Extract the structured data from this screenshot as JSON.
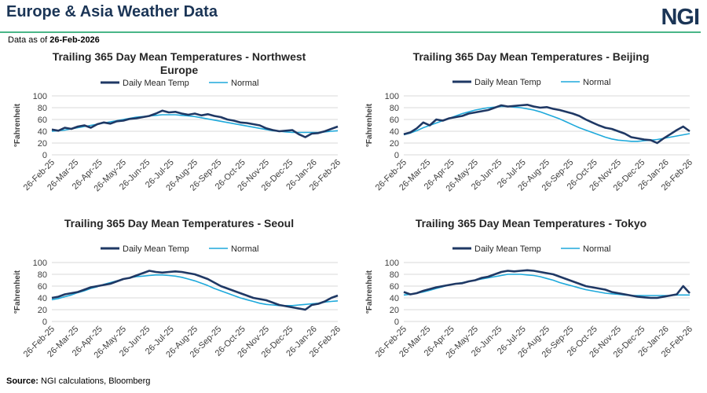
{
  "header": {
    "title": "Europe & Asia Weather Data",
    "logo_text": "NGI",
    "data_as_of_label": "Data as of",
    "data_as_of_date": "26-Feb-2026"
  },
  "footer": {
    "source_label": "Source:",
    "source_text": "NGI calculations, Bloomberg"
  },
  "colors": {
    "title": "#1b3556",
    "accent_rule": "#49b687",
    "daily_series": "#1f3864",
    "normal_series": "#1ea9db",
    "gridline": "#d9d9d9"
  },
  "chart_data": [
    {
      "type": "line",
      "title": "Trailing 365 Day Mean Temperatures - Northwest Europe",
      "ylabel": "°Fahrenheit",
      "ylim": [
        0,
        100
      ],
      "yticks": [
        0,
        20,
        40,
        60,
        80,
        100
      ],
      "xticks": [
        "26-Feb-25",
        "26-Mar-25",
        "26-Apr-25",
        "26-May-25",
        "26-Jun-25",
        "26-Jul-25",
        "26-Aug-25",
        "26-Sep-25",
        "26-Oct-25",
        "26-Nov-25",
        "26-Dec-25",
        "26-Jan-26",
        "26-Feb-26"
      ],
      "grid": "horizontal",
      "legend": "top",
      "series": [
        {
          "name": "Daily Mean Temp",
          "color": "#1f3864",
          "values": [
            43,
            41,
            46,
            44,
            48,
            50,
            46,
            52,
            55,
            53,
            57,
            58,
            61,
            62,
            64,
            66,
            70,
            75,
            72,
            73,
            70,
            68,
            70,
            67,
            69,
            66,
            64,
            60,
            58,
            55,
            54,
            52,
            50,
            45,
            42,
            40,
            41,
            42,
            35,
            30,
            36,
            37,
            40,
            44,
            48
          ]
        },
        {
          "name": "Normal",
          "color": "#1ea9db",
          "values": [
            40,
            41,
            42,
            44,
            46,
            48,
            50,
            52,
            54,
            56,
            58,
            60,
            62,
            64,
            65,
            66,
            67,
            68,
            68,
            68,
            67,
            66,
            65,
            63,
            61,
            59,
            57,
            55,
            53,
            51,
            49,
            47,
            45,
            43,
            41,
            40,
            39,
            38,
            38,
            38,
            38,
            38,
            39,
            40,
            41
          ]
        }
      ]
    },
    {
      "type": "line",
      "title": "Trailing 365 Day Mean Temperatures - Beijing",
      "ylabel": "°Fahrenheit",
      "ylim": [
        0,
        100
      ],
      "yticks": [
        0,
        20,
        40,
        60,
        80,
        100
      ],
      "xticks": [
        "26-Feb-25",
        "26-Mar-25",
        "26-Apr-25",
        "26-May-25",
        "26-Jun-25",
        "26-Jul-25",
        "26-Aug-25",
        "26-Sep-25",
        "26-Oct-25",
        "26-Nov-25",
        "26-Dec-25",
        "26-Jan-26",
        "26-Feb-26"
      ],
      "grid": "horizontal",
      "legend": "top",
      "series": [
        {
          "name": "Daily Mean Temp",
          "color": "#1f3864",
          "values": [
            35,
            38,
            45,
            55,
            50,
            60,
            58,
            62,
            64,
            66,
            70,
            72,
            74,
            76,
            80,
            84,
            82,
            83,
            84,
            85,
            82,
            80,
            81,
            78,
            76,
            73,
            70,
            66,
            60,
            55,
            50,
            46,
            44,
            40,
            36,
            30,
            28,
            26,
            25,
            20,
            28,
            35,
            42,
            48,
            40
          ]
        },
        {
          "name": "Normal",
          "color": "#1ea9db",
          "values": [
            34,
            37,
            41,
            46,
            50,
            54,
            58,
            62,
            66,
            70,
            73,
            76,
            78,
            80,
            81,
            82,
            82,
            81,
            80,
            78,
            76,
            73,
            69,
            65,
            61,
            56,
            51,
            46,
            42,
            38,
            34,
            30,
            27,
            25,
            24,
            23,
            23,
            24,
            25,
            26,
            28,
            30,
            32,
            34,
            36
          ]
        }
      ]
    },
    {
      "type": "line",
      "title": "Trailing 365 Day Mean Temperatures - Seoul",
      "ylabel": "°Fahrenheit",
      "ylim": [
        0,
        100
      ],
      "yticks": [
        0,
        20,
        40,
        60,
        80,
        100
      ],
      "xticks": [
        "26-Feb-25",
        "26-Mar-25",
        "26-Apr-25",
        "26-May-25",
        "26-Jun-25",
        "26-Jul-25",
        "26-Aug-25",
        "26-Sep-25",
        "26-Oct-25",
        "26-Nov-25",
        "26-Dec-25",
        "26-Jan-26",
        "26-Feb-26"
      ],
      "grid": "horizontal",
      "legend": "top",
      "series": [
        {
          "name": "Daily Mean Temp",
          "color": "#1f3864",
          "values": [
            40,
            42,
            46,
            48,
            50,
            54,
            58,
            60,
            62,
            64,
            68,
            72,
            74,
            78,
            82,
            86,
            84,
            83,
            84,
            85,
            84,
            82,
            80,
            76,
            72,
            66,
            60,
            56,
            52,
            48,
            44,
            40,
            38,
            36,
            32,
            28,
            26,
            24,
            22,
            20,
            28,
            30,
            34,
            40,
            44
          ]
        },
        {
          "name": "Normal",
          "color": "#1ea9db",
          "values": [
            37,
            39,
            42,
            45,
            49,
            52,
            56,
            59,
            63,
            66,
            69,
            72,
            74,
            76,
            77,
            78,
            79,
            79,
            78,
            77,
            75,
            72,
            69,
            65,
            61,
            56,
            52,
            48,
            44,
            40,
            37,
            34,
            31,
            29,
            28,
            27,
            27,
            27,
            28,
            29,
            30,
            31,
            33,
            34,
            35
          ]
        }
      ]
    },
    {
      "type": "line",
      "title": "Trailing 365 Day Mean Temperatures - Tokyo",
      "ylabel": "°Fahrenheit",
      "ylim": [
        0,
        100
      ],
      "yticks": [
        0,
        20,
        40,
        60,
        80,
        100
      ],
      "xticks": [
        "26-Feb-25",
        "26-Mar-25",
        "26-Apr-25",
        "26-May-25",
        "26-Jun-25",
        "26-Jul-25",
        "26-Aug-25",
        "26-Sep-25",
        "26-Oct-25",
        "26-Nov-25",
        "26-Dec-25",
        "26-Jan-26",
        "26-Feb-26"
      ],
      "grid": "horizontal",
      "legend": "top",
      "series": [
        {
          "name": "Daily Mean Temp",
          "color": "#1f3864",
          "values": [
            50,
            46,
            48,
            52,
            55,
            58,
            60,
            62,
            64,
            65,
            68,
            70,
            74,
            76,
            80,
            84,
            86,
            85,
            86,
            87,
            86,
            84,
            82,
            80,
            76,
            72,
            68,
            64,
            60,
            58,
            56,
            54,
            50,
            48,
            46,
            44,
            42,
            41,
            40,
            40,
            42,
            44,
            46,
            60,
            48
          ]
        },
        {
          "name": "Normal",
          "color": "#1ea9db",
          "values": [
            45,
            46,
            48,
            50,
            53,
            56,
            59,
            62,
            64,
            66,
            68,
            70,
            72,
            74,
            76,
            78,
            80,
            80,
            80,
            79,
            78,
            76,
            73,
            70,
            66,
            63,
            60,
            57,
            54,
            52,
            50,
            48,
            47,
            46,
            45,
            44,
            44,
            44,
            44,
            44,
            44,
            44,
            45,
            45,
            45
          ]
        }
      ]
    }
  ]
}
